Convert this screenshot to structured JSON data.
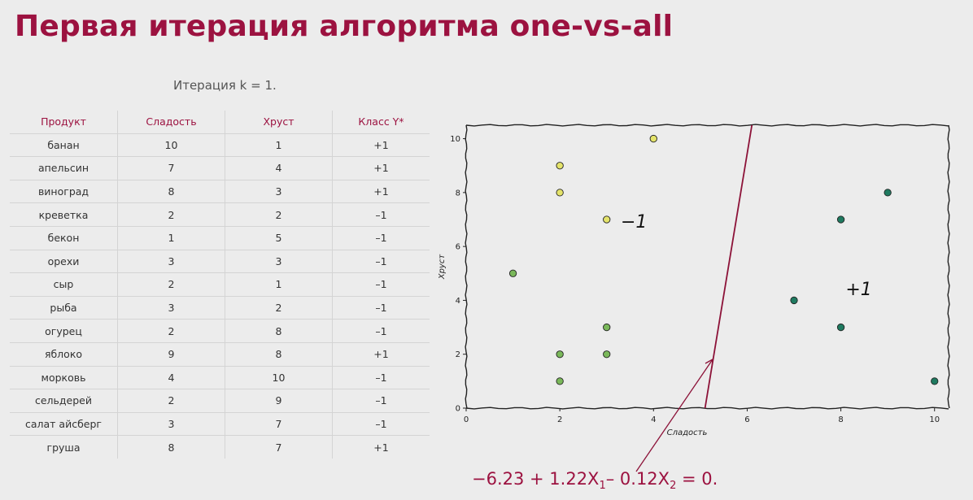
{
  "title": "Первая итерация алгоритма one-vs-all",
  "iteration_label": "Итерация k = 1.",
  "table": {
    "headers": [
      "Продукт",
      "Сладость",
      "Хруст",
      "Класс Y*"
    ],
    "rows": [
      [
        "банан",
        "10",
        "1",
        "+1"
      ],
      [
        "апельсин",
        "7",
        "4",
        "+1"
      ],
      [
        "виноград",
        "8",
        "3",
        "+1"
      ],
      [
        "креветка",
        "2",
        "2",
        "–1"
      ],
      [
        "бекон",
        "1",
        "5",
        "–1"
      ],
      [
        "орехи",
        "3",
        "3",
        "–1"
      ],
      [
        "сыр",
        "2",
        "1",
        "–1"
      ],
      [
        "рыба",
        "3",
        "2",
        "–1"
      ],
      [
        "огурец",
        "2",
        "8",
        "–1"
      ],
      [
        "яблоко",
        "9",
        "8",
        "+1"
      ],
      [
        "морковь",
        "4",
        "10",
        "–1"
      ],
      [
        "сельдерей",
        "2",
        "9",
        "–1"
      ],
      [
        "салат айсберг",
        "3",
        "7",
        "–1"
      ],
      [
        "груша",
        "8",
        "7",
        "+1"
      ]
    ]
  },
  "chart_data": {
    "type": "scatter",
    "xlabel": "Сладость",
    "ylabel": "Хруст",
    "xlim": [
      0,
      10.3
    ],
    "ylim": [
      0,
      10.5
    ],
    "xticks": [
      0,
      2,
      4,
      6,
      8,
      10
    ],
    "yticks": [
      0,
      2,
      4,
      6,
      8,
      10
    ],
    "points": [
      {
        "x": 2,
        "y": 9,
        "color": "#e4e36a"
      },
      {
        "x": 2,
        "y": 8,
        "color": "#e4e36a"
      },
      {
        "x": 3,
        "y": 7,
        "color": "#e4e36a"
      },
      {
        "x": 4,
        "y": 10,
        "color": "#e4e36a"
      },
      {
        "x": 1,
        "y": 5,
        "color": "#7ab85a"
      },
      {
        "x": 2,
        "y": 2,
        "color": "#7ab85a"
      },
      {
        "x": 2,
        "y": 1,
        "color": "#7ab85a"
      },
      {
        "x": 3,
        "y": 3,
        "color": "#7ab85a"
      },
      {
        "x": 3,
        "y": 2,
        "color": "#7ab85a"
      },
      {
        "x": 7,
        "y": 4,
        "color": "#1f7a60"
      },
      {
        "x": 8,
        "y": 3,
        "color": "#1f7a60"
      },
      {
        "x": 8,
        "y": 7,
        "color": "#1f7a60"
      },
      {
        "x": 9,
        "y": 8,
        "color": "#1f7a60"
      },
      {
        "x": 10,
        "y": 1,
        "color": "#1f7a60"
      }
    ],
    "decision_line": {
      "x1": 5.1,
      "y1": 0,
      "x2": 6.1,
      "y2": 10.5,
      "color": "#8c1238"
    },
    "annotations": [
      {
        "text": "−1",
        "x": 3.3,
        "y": 6.7
      },
      {
        "text": "+1",
        "x": 8.1,
        "y": 4.2
      }
    ]
  },
  "equation": {
    "prefix": "−6.23 + 1.22X",
    "sub1": "1",
    "middle": "– 0.12X",
    "sub2": "2",
    "suffix": " = 0."
  },
  "colors": {
    "accent": "#9c1240",
    "line": "#8c1238"
  }
}
